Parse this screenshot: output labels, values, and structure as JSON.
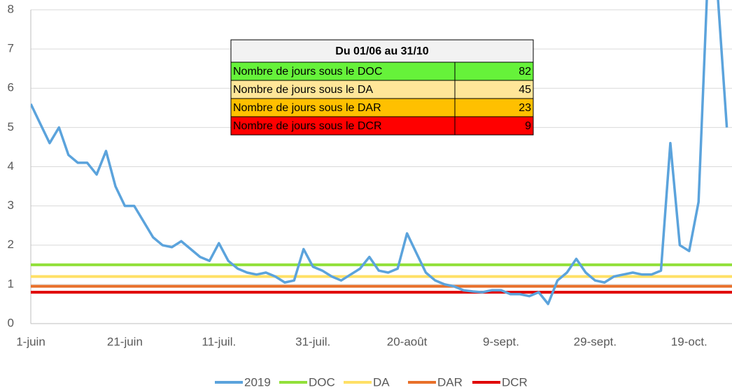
{
  "chart_data": {
    "type": "line",
    "categories": [
      "1-juin",
      null,
      null,
      null,
      null,
      null,
      null,
      null,
      null,
      null,
      "21-juin",
      null,
      null,
      null,
      null,
      null,
      null,
      null,
      null,
      null,
      "11-juil.",
      null,
      null,
      null,
      null,
      null,
      null,
      null,
      null,
      null,
      "31-juil.",
      null,
      null,
      null,
      null,
      null,
      null,
      null,
      null,
      null,
      "20-août",
      null,
      null,
      null,
      null,
      null,
      null,
      null,
      null,
      null,
      "9-sept.",
      null,
      null,
      null,
      null,
      null,
      null,
      null,
      null,
      null,
      "29-sept.",
      null,
      null,
      null,
      null,
      null,
      null,
      null,
      null,
      null,
      "19-oct.",
      null,
      null,
      null,
      null
    ],
    "series": [
      {
        "name": "2019",
        "color": "#5ba3dc",
        "values": [
          5.6,
          5.1,
          4.6,
          5.0,
          4.3,
          4.1,
          4.1,
          3.8,
          4.4,
          3.5,
          3.0,
          3.0,
          2.6,
          2.2,
          2.0,
          1.95,
          2.1,
          1.9,
          1.7,
          1.6,
          2.05,
          1.6,
          1.4,
          1.3,
          1.25,
          1.3,
          1.2,
          1.05,
          1.1,
          1.9,
          1.45,
          1.35,
          1.2,
          1.1,
          1.25,
          1.4,
          1.7,
          1.35,
          1.3,
          1.4,
          2.3,
          1.8,
          1.3,
          1.1,
          1.0,
          0.95,
          0.85,
          0.82,
          0.8,
          0.85,
          0.85,
          0.75,
          0.75,
          0.7,
          0.8,
          0.5,
          1.1,
          1.3,
          1.65,
          1.3,
          1.1,
          1.05,
          1.2,
          1.25,
          1.3,
          1.25,
          1.25,
          1.35,
          4.6,
          2.0,
          1.85,
          3.1,
          9,
          8.5,
          5.0
        ]
      }
    ],
    "thresholds": [
      {
        "name": "DOC",
        "color": "#92e03a",
        "value": 1.5
      },
      {
        "name": "DA",
        "color": "#ffe066",
        "value": 1.2
      },
      {
        "name": "DAR",
        "color": "#e8702a",
        "value": 0.95
      },
      {
        "name": "DCR",
        "color": "#e00000",
        "value": 0.8
      }
    ],
    "ylim": [
      0,
      8
    ],
    "yticks": [
      0,
      1,
      2,
      3,
      4,
      5,
      6,
      7,
      8
    ],
    "grid": true,
    "legend": "bottom",
    "table": {
      "title": "Du 01/06 au 31/10",
      "rows": [
        {
          "label": "Nombre de jours sous le DOC",
          "value": 82,
          "color": "#66f23a"
        },
        {
          "label": "Nombre de jours sous le DA",
          "value": 45,
          "color": "#ffe699"
        },
        {
          "label": "Nombre de jours sous le DAR",
          "value": 23,
          "color": "#ffc000"
        },
        {
          "label": "Nombre de jours sous le DCR",
          "value": 9,
          "color": "#ff0000"
        }
      ]
    }
  }
}
